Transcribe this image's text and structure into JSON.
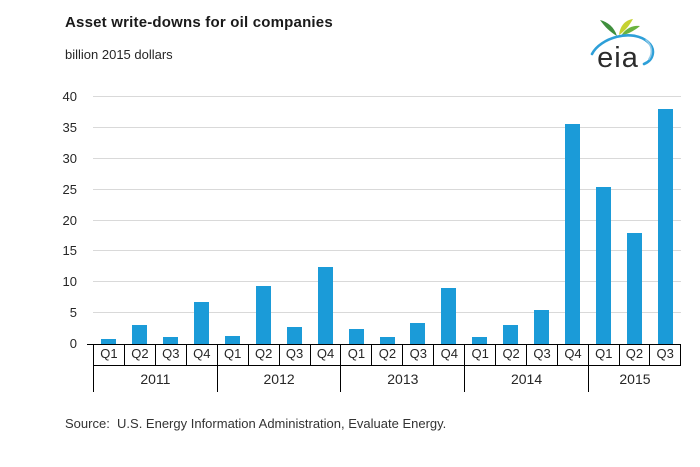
{
  "header": {
    "title": "Asset write-downs for oil companies",
    "subtitle": "billion 2015 dollars",
    "logo_text": "eia"
  },
  "footer": {
    "source": "Source:  U.S. Energy Information Administration, Evaluate Energy."
  },
  "chart_data": {
    "type": "bar",
    "title": "Asset write-downs for oil companies",
    "ylabel": "billion 2015 dollars",
    "xlabel": "",
    "ylim": [
      0,
      40
    ],
    "ytick_step": 5,
    "yticks": [
      0,
      5,
      10,
      15,
      20,
      25,
      30,
      35,
      40
    ],
    "grid": "horizontal",
    "legend": "none",
    "colors": {
      "bar": "#1b9bd8",
      "gridline": "#d9d9d9",
      "axis": "#000000"
    },
    "groups": [
      {
        "year": "2011",
        "quarters": [
          "Q1",
          "Q2",
          "Q3",
          "Q4"
        ],
        "values": [
          0.8,
          3.1,
          1.1,
          6.8
        ]
      },
      {
        "year": "2012",
        "quarters": [
          "Q1",
          "Q2",
          "Q3",
          "Q4"
        ],
        "values": [
          1.3,
          9.4,
          2.8,
          12.5
        ]
      },
      {
        "year": "2013",
        "quarters": [
          "Q1",
          "Q2",
          "Q3",
          "Q4"
        ],
        "values": [
          2.5,
          1.2,
          3.4,
          9.0
        ]
      },
      {
        "year": "2014",
        "quarters": [
          "Q1",
          "Q2",
          "Q3",
          "Q4"
        ],
        "values": [
          1.1,
          3.0,
          5.5,
          35.7
        ]
      },
      {
        "year": "2015",
        "quarters": [
          "Q1",
          "Q2",
          "Q3"
        ],
        "values": [
          25.4,
          18.0,
          38.1
        ]
      }
    ]
  }
}
